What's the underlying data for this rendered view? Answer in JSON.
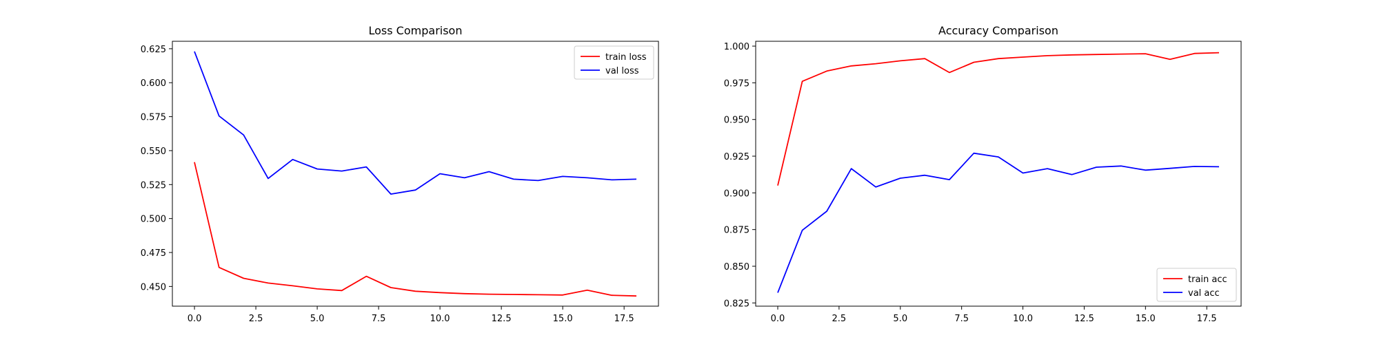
{
  "chart_data": [
    {
      "type": "line",
      "title": "Loss Comparison",
      "xlabel": "",
      "ylabel": "",
      "x": [
        0,
        1,
        2,
        3,
        4,
        5,
        6,
        7,
        8,
        9,
        10,
        11,
        12,
        13,
        14,
        15,
        16,
        17,
        18
      ],
      "xlim": [
        -0.9,
        18.9
      ],
      "ylim": [
        0.4355,
        0.6305
      ],
      "xticks": [
        0.0,
        2.5,
        5.0,
        7.5,
        10.0,
        12.5,
        15.0,
        17.5
      ],
      "xtick_labels": [
        "0.0",
        "2.5",
        "5.0",
        "7.5",
        "10.0",
        "12.5",
        "15.0",
        "17.5"
      ],
      "yticks": [
        0.45,
        0.475,
        0.5,
        0.525,
        0.55,
        0.575,
        0.6,
        0.625
      ],
      "ytick_labels": [
        "0.450",
        "0.475",
        "0.500",
        "0.525",
        "0.550",
        "0.575",
        "0.600",
        "0.625"
      ],
      "grid": false,
      "legend_position": "top-right",
      "series": [
        {
          "name": "train loss",
          "color": "#ff0000",
          "values": [
            0.5415,
            0.464,
            0.456,
            0.4525,
            0.4505,
            0.4482,
            0.447,
            0.4575,
            0.4492,
            0.4465,
            0.4455,
            0.4447,
            0.4443,
            0.4441,
            0.4439,
            0.4437,
            0.4473,
            0.4435,
            0.443
          ]
        },
        {
          "name": "val loss",
          "color": "#0000ff",
          "values": [
            0.623,
            0.5755,
            0.5615,
            0.5295,
            0.5435,
            0.5365,
            0.535,
            0.538,
            0.518,
            0.521,
            0.533,
            0.53,
            0.5345,
            0.529,
            0.528,
            0.531,
            0.53,
            0.5285,
            0.529
          ]
        }
      ]
    },
    {
      "type": "line",
      "title": "Accuracy Comparison",
      "xlabel": "",
      "ylabel": "",
      "x": [
        0,
        1,
        2,
        3,
        4,
        5,
        6,
        7,
        8,
        9,
        10,
        11,
        12,
        13,
        14,
        15,
        16,
        17,
        18
      ],
      "xlim": [
        -0.9,
        18.9
      ],
      "ylim": [
        0.8228,
        1.0033
      ],
      "xticks": [
        0.0,
        2.5,
        5.0,
        7.5,
        10.0,
        12.5,
        15.0,
        17.5
      ],
      "xtick_labels": [
        "0.0",
        "2.5",
        "5.0",
        "7.5",
        "10.0",
        "12.5",
        "15.0",
        "17.5"
      ],
      "yticks": [
        0.825,
        0.85,
        0.875,
        0.9,
        0.925,
        0.95,
        0.975,
        1.0
      ],
      "ytick_labels": [
        "0.825",
        "0.850",
        "0.875",
        "0.900",
        "0.925",
        "0.950",
        "0.975",
        "1.000"
      ],
      "grid": false,
      "legend_position": "bottom-right",
      "series": [
        {
          "name": "train acc",
          "color": "#ff0000",
          "values": [
            0.905,
            0.976,
            0.983,
            0.9865,
            0.988,
            0.99,
            0.9915,
            0.982,
            0.989,
            0.9915,
            0.9925,
            0.9935,
            0.994,
            0.9943,
            0.9946,
            0.9948,
            0.991,
            0.995,
            0.9955
          ]
        },
        {
          "name": "val acc",
          "color": "#0000ff",
          "values": [
            0.832,
            0.8745,
            0.8875,
            0.9165,
            0.904,
            0.91,
            0.912,
            0.909,
            0.927,
            0.9245,
            0.9135,
            0.9165,
            0.9125,
            0.9175,
            0.9183,
            0.9155,
            0.9167,
            0.918,
            0.9178
          ]
        }
      ]
    }
  ]
}
